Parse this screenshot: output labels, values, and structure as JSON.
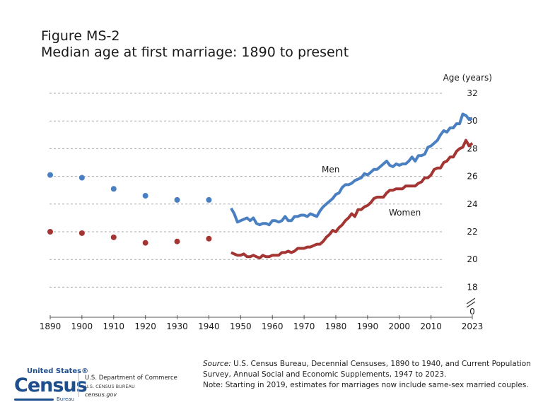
{
  "figure_label": "Figure MS-2",
  "title": "Median age at first marriage: 1890 to present",
  "chart_data": {
    "type": "line",
    "title": "Median age at first marriage: 1890 to present",
    "ylabel": "Age (years)",
    "xlabel": "",
    "ylim": [
      18,
      32
    ],
    "y_ticks": [
      "32",
      "30",
      "28",
      "26",
      "24",
      "22",
      "20",
      "18",
      "0"
    ],
    "y_axis_break": true,
    "x_ticks": [
      "1890",
      "1900",
      "1910",
      "1920",
      "1930",
      "1940",
      "1950",
      "1960",
      "1970",
      "1980",
      "1990",
      "2000",
      "2010",
      "2023"
    ],
    "grid": "horizontal dashed",
    "colors": {
      "men": "#4a80c2",
      "women": "#a33533"
    },
    "series": [
      {
        "name": "Men",
        "decennial": {
          "x": [
            1890,
            1900,
            1910,
            1920,
            1930,
            1940
          ],
          "y": [
            26.1,
            25.9,
            25.1,
            24.6,
            24.3,
            24.3
          ]
        },
        "annual": {
          "x_start": 1947,
          "y": [
            23.7,
            23.3,
            22.7,
            22.8,
            22.9,
            23.0,
            22.8,
            23.0,
            22.6,
            22.5,
            22.6,
            22.6,
            22.5,
            22.8,
            22.8,
            22.7,
            22.8,
            23.1,
            22.8,
            22.8,
            23.1,
            23.1,
            23.2,
            23.2,
            23.1,
            23.3,
            23.2,
            23.1,
            23.5,
            23.8,
            24.0,
            24.2,
            24.4,
            24.7,
            24.8,
            25.2,
            25.4,
            25.4,
            25.5,
            25.7,
            25.8,
            25.9,
            26.2,
            26.1,
            26.3,
            26.5,
            26.5,
            26.7,
            26.9,
            27.1,
            26.8,
            26.7,
            26.9,
            26.8,
            26.9,
            26.9,
            27.1,
            27.4,
            27.1,
            27.5,
            27.5,
            27.6,
            28.1,
            28.2,
            28.4,
            28.6,
            29.0,
            29.3,
            29.2,
            29.5,
            29.5,
            29.8,
            29.8,
            30.5,
            30.4,
            30.1,
            30.2
          ]
        }
      },
      {
        "name": "Women",
        "decennial": {
          "x": [
            1890,
            1900,
            1910,
            1920,
            1930,
            1940
          ],
          "y": [
            22.0,
            21.9,
            21.6,
            21.2,
            21.3,
            21.5
          ]
        },
        "annual": {
          "x_start": 1947,
          "y": [
            20.5,
            20.4,
            20.3,
            20.3,
            20.4,
            20.2,
            20.2,
            20.3,
            20.2,
            20.1,
            20.3,
            20.2,
            20.2,
            20.3,
            20.3,
            20.3,
            20.5,
            20.5,
            20.6,
            20.5,
            20.6,
            20.8,
            20.8,
            20.8,
            20.9,
            20.9,
            21.0,
            21.1,
            21.1,
            21.3,
            21.6,
            21.8,
            22.1,
            22.0,
            22.3,
            22.5,
            22.8,
            23.0,
            23.3,
            23.1,
            23.6,
            23.6,
            23.8,
            23.9,
            24.1,
            24.4,
            24.5,
            24.5,
            24.5,
            24.8,
            25.0,
            25.0,
            25.1,
            25.1,
            25.1,
            25.3,
            25.3,
            25.3,
            25.3,
            25.5,
            25.6,
            25.9,
            25.9,
            26.1,
            26.5,
            26.6,
            26.6,
            27.0,
            27.1,
            27.4,
            27.4,
            27.8,
            28.0,
            28.1,
            28.6,
            28.2,
            28.4
          ]
        }
      }
    ]
  },
  "footer": {
    "source_label": "Source:",
    "source_text": " U.S. Census Bureau, Decennial Censuses, 1890 to 1940, and Current Population Survey, Annual Social and Economic Supplements, 1947 to 2023.",
    "note": "Note: Starting in 2019, estimates for marriages now include same-sex married couples.",
    "logo": {
      "line1": "United States®",
      "line2": "Census",
      "line3": "Bureau"
    },
    "dept": "U.S. Department of Commerce",
    "bureau": "U.S. CENSUS BUREAU",
    "site": "census.gov"
  }
}
